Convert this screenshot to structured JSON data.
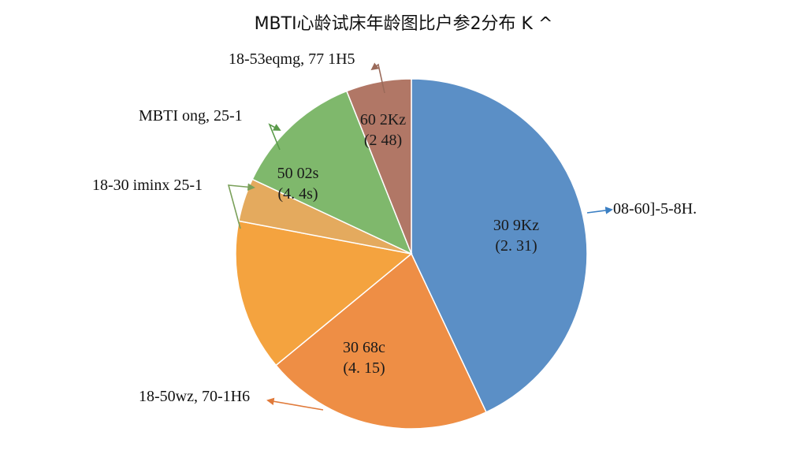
{
  "chart_data": {
    "type": "pie",
    "title": "MBTI心龄试床年龄图比户参2分布 K ^",
    "slices": [
      {
        "inner_label": "30 9Kz",
        "inner_value": "(2. 31)",
        "outer_label": "08-60]-5-8H.",
        "share": 0.43,
        "color": "#5b8fc6"
      },
      {
        "inner_label": "30 68c",
        "inner_value": "(4. 15)",
        "outer_label": "18-50wz, 70-1H6",
        "share": 0.21,
        "color": "#ee8e45"
      },
      {
        "inner_label": "",
        "inner_value": "",
        "outer_label": "",
        "share": 0.14,
        "color": "#f4a33f"
      },
      {
        "inner_label": "",
        "inner_value": "",
        "outer_label": "18-30 iminx 25-1",
        "share": 0.04,
        "color": "#e4aa5e"
      },
      {
        "inner_label": "50 02s",
        "inner_value": "(4. 4s)",
        "outer_label": "MBTI ong, 25-1",
        "share": 0.12,
        "color": "#7fb86c"
      },
      {
        "inner_label": "60 2Kz",
        "inner_value": "(2  48)",
        "outer_label": "18-53eqmg, 77 1H5",
        "share": 0.06,
        "color": "#b17766"
      }
    ]
  }
}
